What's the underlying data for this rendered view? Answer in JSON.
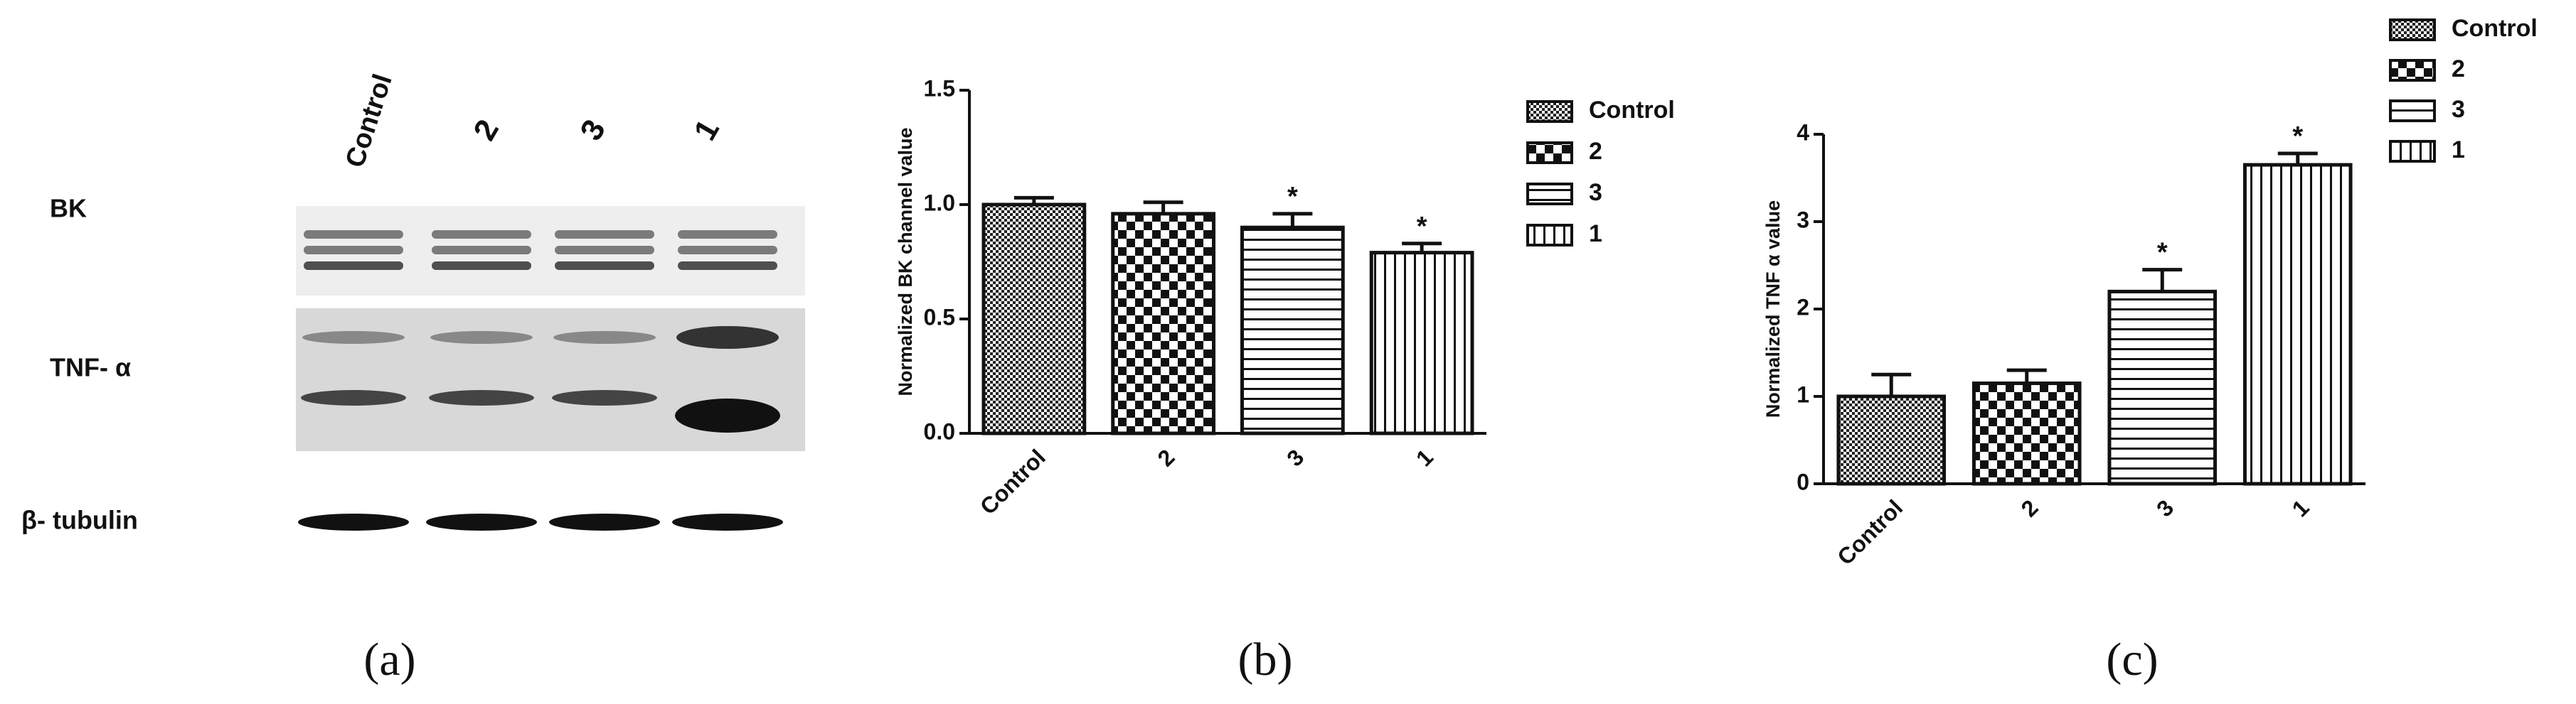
{
  "blot": {
    "lanes": [
      "Control",
      "2",
      "3",
      "1"
    ],
    "rows": [
      "BK",
      "TNF- α",
      "β- tubulin"
    ],
    "caption": "(a)"
  },
  "chart_data": [
    {
      "type": "bar",
      "caption": "(b)",
      "y_label": "Normalized BK channel value",
      "categories": [
        "Control",
        "2",
        "3",
        "1"
      ],
      "values": [
        1.0,
        0.96,
        0.9,
        0.79
      ],
      "errors": [
        0.03,
        0.05,
        0.06,
        0.04
      ],
      "significance": [
        null,
        null,
        "*",
        "*"
      ],
      "patterns": [
        "dots",
        "checker",
        "hlines",
        "vlines"
      ],
      "ylim": [
        0,
        1.5
      ],
      "yticks": [
        {
          "value": 0,
          "label": "0.0"
        },
        0.5,
        {
          "value": 1,
          "label": "1.0"
        },
        1.5
      ],
      "legend": "right"
    },
    {
      "type": "bar",
      "caption": "(c)",
      "y_label": "Normalized TNF α value",
      "categories": [
        "Control",
        "2",
        "3",
        "1"
      ],
      "values": [
        1.0,
        1.15,
        2.2,
        3.65
      ],
      "errors": [
        0.25,
        0.15,
        0.25,
        0.13
      ],
      "significance": [
        null,
        null,
        "*",
        "*"
      ],
      "patterns": [
        "dots",
        "checker",
        "hlines",
        "vlines"
      ],
      "ylim": [
        0,
        4
      ],
      "yticks": [
        0,
        1,
        2,
        3,
        4
      ],
      "legend": "top-right"
    }
  ]
}
